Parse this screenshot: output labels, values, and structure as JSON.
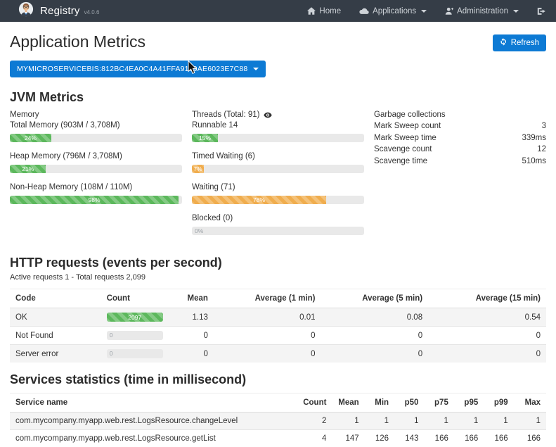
{
  "colors": {
    "navbar": "#353d47",
    "primary": "#0d7ad4",
    "success": "#5cb85c",
    "warning": "#f0ad4e"
  },
  "navbar": {
    "brand": "Registry",
    "version": "v4.0.6",
    "items": [
      {
        "label": "Home",
        "icon": "home-icon",
        "caret": false
      },
      {
        "label": "Applications",
        "icon": "cloud-icon",
        "caret": true
      },
      {
        "label": "Administration",
        "icon": "user-icon",
        "caret": true
      }
    ],
    "signout": {
      "icon": "sign-out-icon"
    }
  },
  "page": {
    "title": "Application Metrics",
    "refresh_label": "Refresh"
  },
  "instance_selector": {
    "label": "MYMICROSERVICEBIS:812BC4EA0C4A41FFA9179AE6023E7C88"
  },
  "jvm": {
    "title": "JVM Metrics",
    "memory": {
      "title": "Memory",
      "bars": [
        {
          "label": "Total Memory (903M / 3,708M)",
          "percent": 24,
          "text": "24%",
          "color": "green"
        },
        {
          "label": "Heap Memory (796M / 3,708M)",
          "percent": 21,
          "text": "21%",
          "color": "green"
        },
        {
          "label": "Non-Heap Memory (108M / 110M)",
          "percent": 98,
          "text": "98%",
          "color": "green"
        }
      ]
    },
    "threads": {
      "title": "Threads (Total: 91)",
      "eye_icon": "eye-icon",
      "bars": [
        {
          "label": "Runnable 14",
          "percent": 15,
          "text": "15%",
          "color": "green"
        },
        {
          "label": "Timed Waiting (6)",
          "percent": 7,
          "text": "7%",
          "color": "orange"
        },
        {
          "label": "Waiting (71)",
          "percent": 78,
          "text": "78%",
          "color": "orange"
        },
        {
          "label": "Blocked (0)",
          "percent": 0,
          "text": "0%",
          "color": "gray"
        }
      ]
    },
    "gc": {
      "title": "Garbage collections",
      "rows": [
        {
          "label": "Mark Sweep count",
          "value": "3"
        },
        {
          "label": "Mark Sweep time",
          "value": "339ms"
        },
        {
          "label": "Scavenge count",
          "value": "12"
        },
        {
          "label": "Scavenge time",
          "value": "510ms"
        }
      ]
    }
  },
  "http": {
    "title": "HTTP requests (events per second)",
    "subtitle": "Active requests 1 - Total requests 2,099",
    "headers": [
      "Code",
      "Count",
      "Mean",
      "Average (1 min)",
      "Average (5 min)",
      "Average (15 min)"
    ],
    "rows": [
      {
        "code": "OK",
        "count_text": "2097",
        "count_percent": 100,
        "color": "green",
        "values": [
          "1.13",
          "0.01",
          "0.08",
          "0.54"
        ]
      },
      {
        "code": "Not Found",
        "count_text": "0",
        "count_percent": 0,
        "color": "gray",
        "values": [
          "0",
          "0",
          "0",
          "0"
        ]
      },
      {
        "code": "Server error",
        "count_text": "0",
        "count_percent": 0,
        "color": "gray",
        "values": [
          "0",
          "0",
          "0",
          "0"
        ]
      }
    ]
  },
  "services": {
    "title": "Services statistics (time in millisecond)",
    "headers": [
      "Service name",
      "Count",
      "Mean",
      "Min",
      "p50",
      "p75",
      "p95",
      "p99",
      "Max"
    ],
    "rows": [
      {
        "name": "com.mycompany.myapp.web.rest.LogsResource.changeLevel",
        "values": [
          "2",
          "1",
          "1",
          "1",
          "1",
          "1",
          "1",
          "1"
        ]
      },
      {
        "name": "com.mycompany.myapp.web.rest.LogsResource.getList",
        "values": [
          "4",
          "147",
          "126",
          "143",
          "166",
          "166",
          "166",
          "166"
        ]
      }
    ]
  }
}
